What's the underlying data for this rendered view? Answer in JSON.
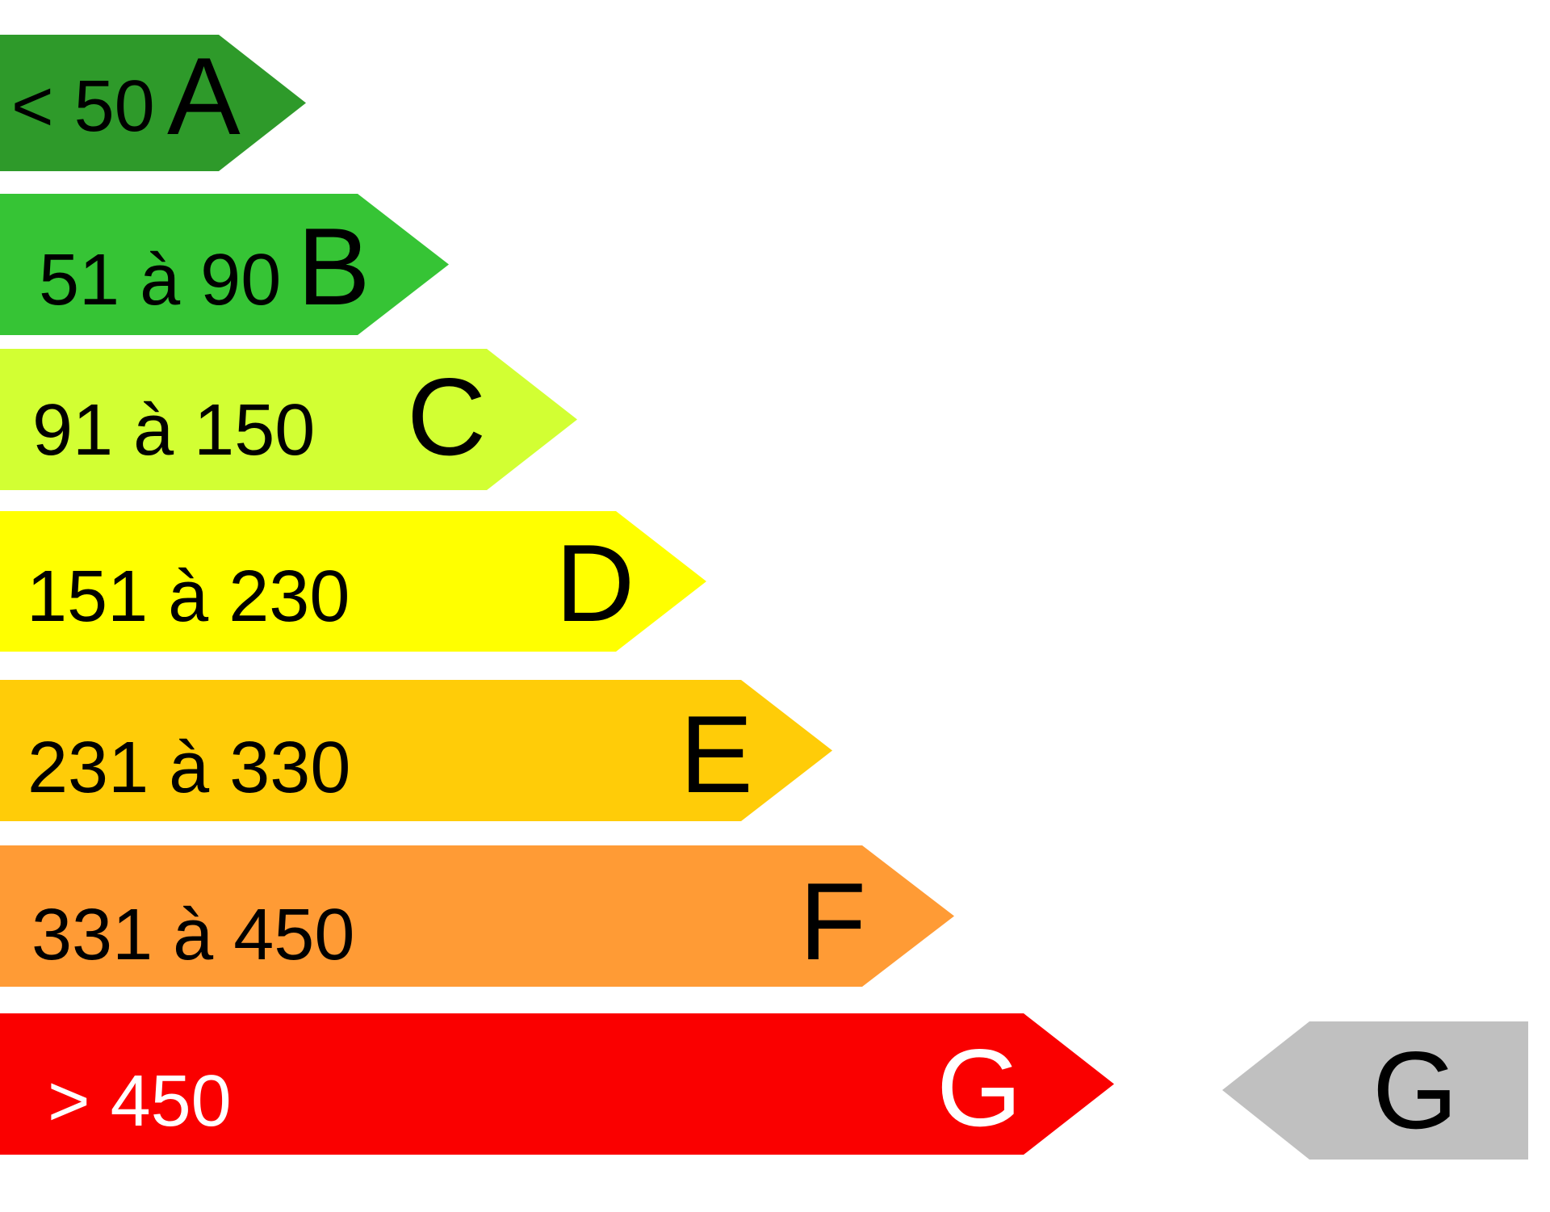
{
  "classes": [
    {
      "range": "< 50",
      "letter": "A",
      "color": "#2e9a2a",
      "text_color": "#000000"
    },
    {
      "range": "51 à 90",
      "letter": "B",
      "color": "#36c435",
      "text_color": "#000000"
    },
    {
      "range": "91 à 150",
      "letter": "C",
      "color": "#d2ff33",
      "text_color": "#000000"
    },
    {
      "range": "151 à 230",
      "letter": "D",
      "color": "#ffff00",
      "text_color": "#000000"
    },
    {
      "range": "231 à 330",
      "letter": "E",
      "color": "#ffcc08",
      "text_color": "#000000"
    },
    {
      "range": "331 à 450",
      "letter": "F",
      "color": "#ff9b35",
      "text_color": "#000000"
    },
    {
      "range": "> 450",
      "letter": "G",
      "color": "#fa0000",
      "text_color": "#ffffff"
    }
  ],
  "indicator": {
    "letter": "G",
    "color": "#c0c0c0",
    "text_color": "#000000"
  }
}
